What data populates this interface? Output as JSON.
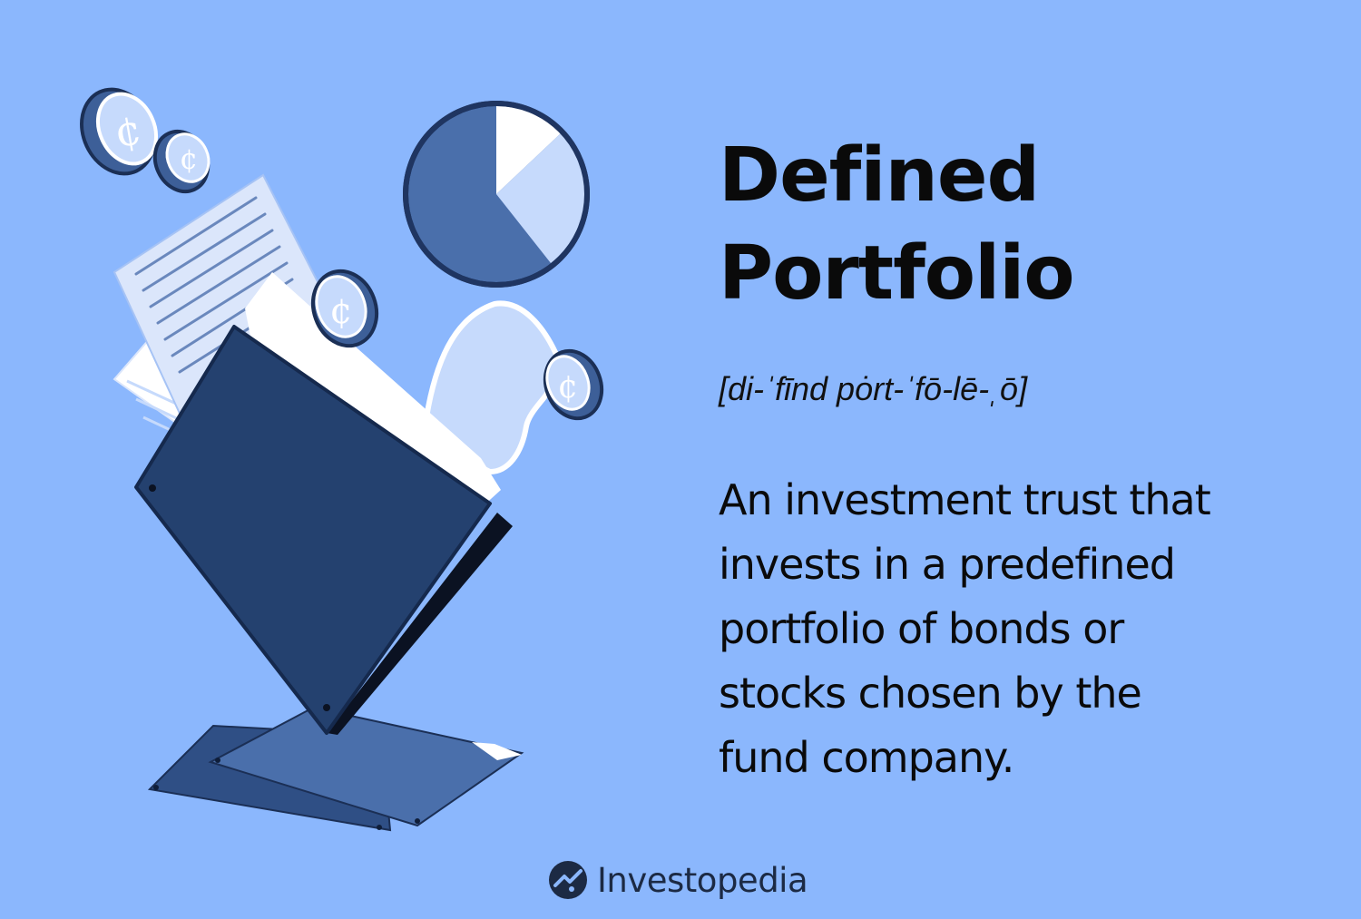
{
  "title_lines": [
    "Defined",
    "Portfolio"
  ],
  "pronunciation": "[di-ˈfīnd pȯrt-ˈfō-lē-ˌō]",
  "definition_lines": [
    "An investment trust that",
    "invests in a predefined",
    "portfolio of bonds or",
    "stocks chosen by the",
    "fund company."
  ],
  "brand": {
    "name": "Investopedia",
    "logo_icon": "investopedia-logo-icon"
  },
  "colors": {
    "background": "#8bb7fd",
    "navy": "#24416f",
    "mid_blue": "#4a6fab",
    "light_blue": "#c6dafc",
    "text": "#0a0a0a"
  },
  "illustration": {
    "icons": [
      "coin-icon",
      "pie-chart-icon",
      "document-icon",
      "folder-icon",
      "banknote-icon"
    ],
    "coin_symbol": "¢"
  }
}
